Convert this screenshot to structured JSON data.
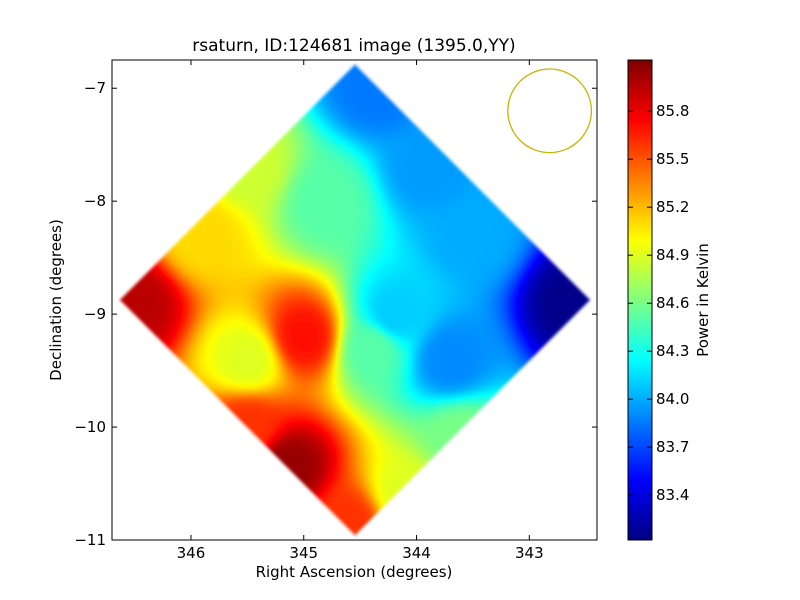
{
  "chart_data": {
    "type": "heatmap",
    "title": "rsaturn, ID:124681 image (1395.0,YY)",
    "xlabel": "Right Ascension (degrees)",
    "ylabel": "Declination (degrees)",
    "xlim": [
      346.7,
      342.4
    ],
    "ylim": [
      -11.0,
      -6.75
    ],
    "x_ticks": [
      "346",
      "345",
      "344",
      "343"
    ],
    "x_tick_values": [
      346,
      345,
      344,
      343
    ],
    "y_ticks": [
      "−7",
      "−8",
      "−9",
      "−10",
      "−11"
    ],
    "y_tick_values": [
      -7,
      -8,
      -9,
      -10,
      -11
    ],
    "colorbar": {
      "label": "Power in Kelvin",
      "range": [
        83.12,
        86.12
      ],
      "ticks": [
        "83.4",
        "83.7",
        "84.0",
        "84.3",
        "84.6",
        "84.9",
        "85.2",
        "85.5",
        "85.8"
      ],
      "tick_values": [
        83.4,
        83.7,
        84.0,
        84.3,
        84.6,
        84.9,
        85.2,
        85.5,
        85.8
      ],
      "colormap": "jet"
    },
    "map_extent": {
      "center_ra": 344.55,
      "center_dec": -8.87,
      "corners": [
        {
          "ra": 344.55,
          "dec": -6.75
        },
        {
          "ra": 342.45,
          "dec": -8.87
        },
        {
          "ra": 344.55,
          "dec": -10.95
        },
        {
          "ra": 346.65,
          "dec": -8.87
        }
      ]
    },
    "features": [
      {
        "ra": 346.5,
        "dec": -8.9,
        "value": 85.95
      },
      {
        "ra": 345.15,
        "dec": -10.35,
        "value": 86.05
      },
      {
        "ra": 344.6,
        "dec": -10.85,
        "value": 85.6
      },
      {
        "ra": 345.9,
        "dec": -8.3,
        "value": 85.1
      },
      {
        "ra": 345.5,
        "dec": -7.7,
        "value": 84.85
      },
      {
        "ra": 344.8,
        "dec": -8.0,
        "value": 84.5
      },
      {
        "ra": 344.35,
        "dec": -7.0,
        "value": 83.85
      },
      {
        "ra": 343.9,
        "dec": -7.7,
        "value": 83.95
      },
      {
        "ra": 343.5,
        "dec": -8.3,
        "value": 84.0
      },
      {
        "ra": 342.6,
        "dec": -8.9,
        "value": 83.15
      },
      {
        "ra": 343.7,
        "dec": -9.4,
        "value": 83.9
      },
      {
        "ra": 344.4,
        "dec": -9.3,
        "value": 84.5
      },
      {
        "ra": 343.6,
        "dec": -10.1,
        "value": 84.6
      },
      {
        "ra": 344.1,
        "dec": -10.6,
        "value": 84.9
      },
      {
        "ra": 345.0,
        "dec": -9.2,
        "value": 85.7
      },
      {
        "ra": 345.5,
        "dec": -9.4,
        "value": 84.9
      },
      {
        "ra": 345.5,
        "dec": -10.0,
        "value": 85.6
      },
      {
        "ra": 344.2,
        "dec": -9.0,
        "value": 84.1
      }
    ],
    "beam": {
      "ra": 342.82,
      "dec": -7.2,
      "radius_deg": 0.37,
      "color": "#c8b400"
    },
    "grid": false
  }
}
